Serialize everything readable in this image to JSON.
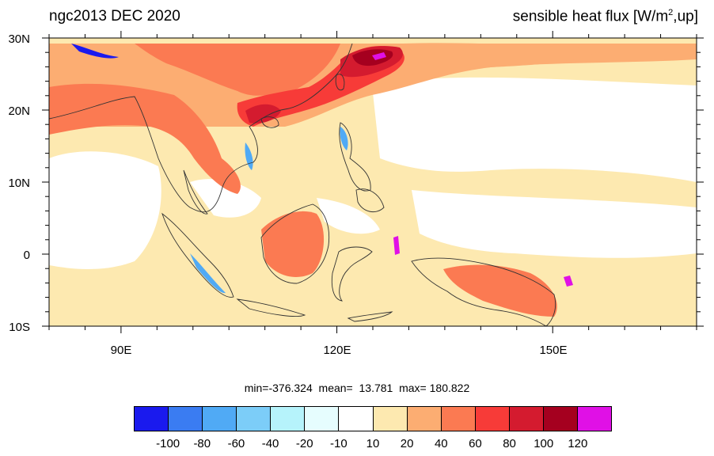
{
  "title_left": "ngc2013 DEC 2020",
  "title_right_main": "sensible heat flux [W/m",
  "title_right_sup": "2",
  "title_right_tail": ",up]",
  "lat_labels": [
    "30N",
    "20N",
    "10N",
    "0",
    "10S"
  ],
  "lon_labels": [
    "90E",
    "120E",
    "150E"
  ],
  "stats_text": "min=-376.324  mean=  13.781  max= 180.822",
  "colorbar": {
    "colors": [
      "#1a1aee",
      "#3a7cf2",
      "#50aaf5",
      "#7ccdf8",
      "#b6f3fb",
      "#e6fdfe",
      "#ffffff",
      "#fde9b0",
      "#fcad72",
      "#fb7a52",
      "#f73b38",
      "#d41b2f",
      "#a5001f",
      "#e010e6"
    ],
    "labels": [
      "-100",
      "-80",
      "-60",
      "-40",
      "-20",
      "-10",
      "10",
      "20",
      "40",
      "60",
      "80",
      "100",
      "120"
    ]
  },
  "map_colors": {
    "ocean_low": "#fde9b0",
    "neutral": "#ffffff",
    "moderate": "#fcad72",
    "strong": "#fb7a52",
    "very_strong": "#f73b38",
    "intense": "#d41b2f",
    "extreme": "#a5001f",
    "peak": "#e010e6",
    "negative": "#50aaf5",
    "negative_strong": "#1a1aee"
  }
}
